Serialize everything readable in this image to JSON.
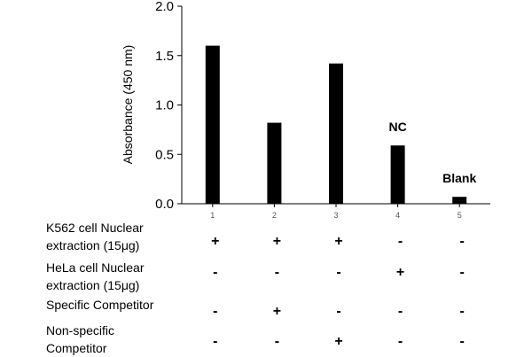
{
  "chart_data": {
    "type": "bar",
    "ylabel": "Absorbance (450 nm)",
    "ylim": [
      0,
      2.0
    ],
    "yticks": [
      "0.0",
      "0.5",
      "1.0",
      "1.5",
      "2.0"
    ],
    "categories": [
      "1",
      "2",
      "3",
      "4",
      "5"
    ],
    "values": [
      1.6,
      0.82,
      1.42,
      0.59,
      0.07
    ],
    "bar_color": "#000000",
    "annotations": [
      {
        "category": "4",
        "text": "NC"
      },
      {
        "category": "5",
        "text": "Blank"
      }
    ]
  },
  "conditions": [
    {
      "label": "K562 cell Nuclear\nextraction (15μg)",
      "signs": [
        "+",
        "+",
        "+",
        "-",
        "-"
      ]
    },
    {
      "label": "HeLa cell Nuclear\nextraction (15μg)",
      "signs": [
        "-",
        "-",
        "-",
        "+",
        "-"
      ]
    },
    {
      "label": "Specific Competitor",
      "signs": [
        "-",
        "+",
        "-",
        "-",
        "-"
      ]
    },
    {
      "label": "Non-specific\nCompetitor",
      "signs": [
        "-",
        "-",
        "+",
        "-",
        "-"
      ]
    }
  ]
}
